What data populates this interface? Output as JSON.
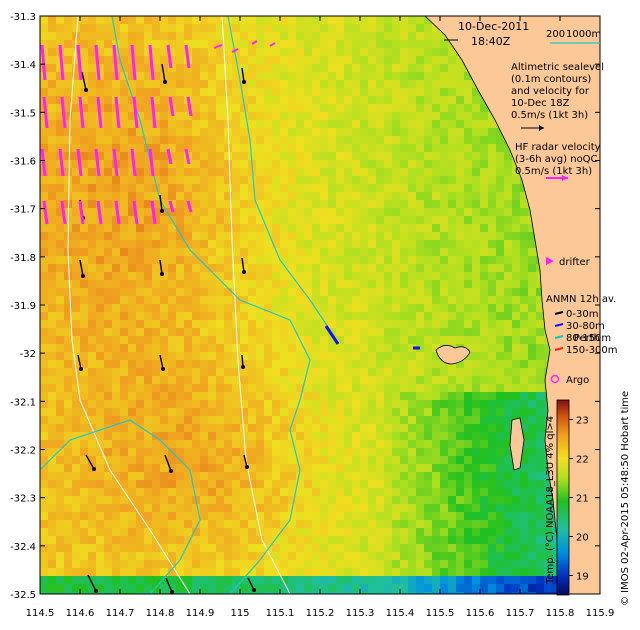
{
  "header": {
    "date": "10-Dec-2011",
    "time": "18:40Z"
  },
  "bathymetry_legend": {
    "label_200": "200",
    "label_1000": "1000m"
  },
  "altimetry_legend": {
    "lines": [
      "Altimetric sealevel",
      "(0.1m contours)",
      "and velocity for",
      "10-Dec 18Z",
      "0.5m/s (1kt 3h)"
    ]
  },
  "hf_radar_legend": {
    "lines": [
      "HF radar velocity",
      "(3-6h avg) noQC",
      "0.5m/s (1kt 3h)"
    ]
  },
  "drifter_label": "drifter",
  "anmn_legend": {
    "title": "ANMN 12h av.",
    "items": [
      {
        "label": "0-30m",
        "color": "#000000"
      },
      {
        "label": "30-80m",
        "color": "#1010ff"
      },
      {
        "label": "80-150m",
        "color": "#00c8c8"
      },
      {
        "label": "150-300m",
        "color": "#ff2020"
      }
    ]
  },
  "argo_label": "Argo",
  "place_label": "Perth",
  "colorbar": {
    "title": "Temp. (°C) NOAA18_L3U 4% ql>4",
    "ticks": [
      "23",
      "22",
      "21",
      "20",
      "19"
    ],
    "min": 18.5,
    "max": 23.5
  },
  "credit": "© IMOS 02-Apr-2015 05:48:50 Hobart time",
  "axes": {
    "x_ticks": [
      "114.5",
      "114.6",
      "114.7",
      "114.8",
      "114.9",
      "115",
      "115.1",
      "115.2",
      "115.3",
      "115.4",
      "115.5",
      "115.6",
      "115.7",
      "115.8",
      "115.9"
    ],
    "y_ticks": [
      "-31.3",
      "-31.4",
      "-31.5",
      "-31.6",
      "-31.7",
      "-31.8",
      "-31.9",
      "-32",
      "-32.1",
      "-32.2",
      "-32.3",
      "-32.4",
      "-32.5"
    ],
    "lon_range": [
      114.5,
      115.9
    ],
    "lat_range": [
      -32.5,
      -31.3
    ]
  },
  "colors": {
    "land": "#fdc898",
    "radar_arrow": "#ff20ff",
    "altimetry_arrow": "#000000",
    "contour_cyan": "#20c8c8",
    "contour_white": "#ffffff",
    "frame": "#000000"
  }
}
